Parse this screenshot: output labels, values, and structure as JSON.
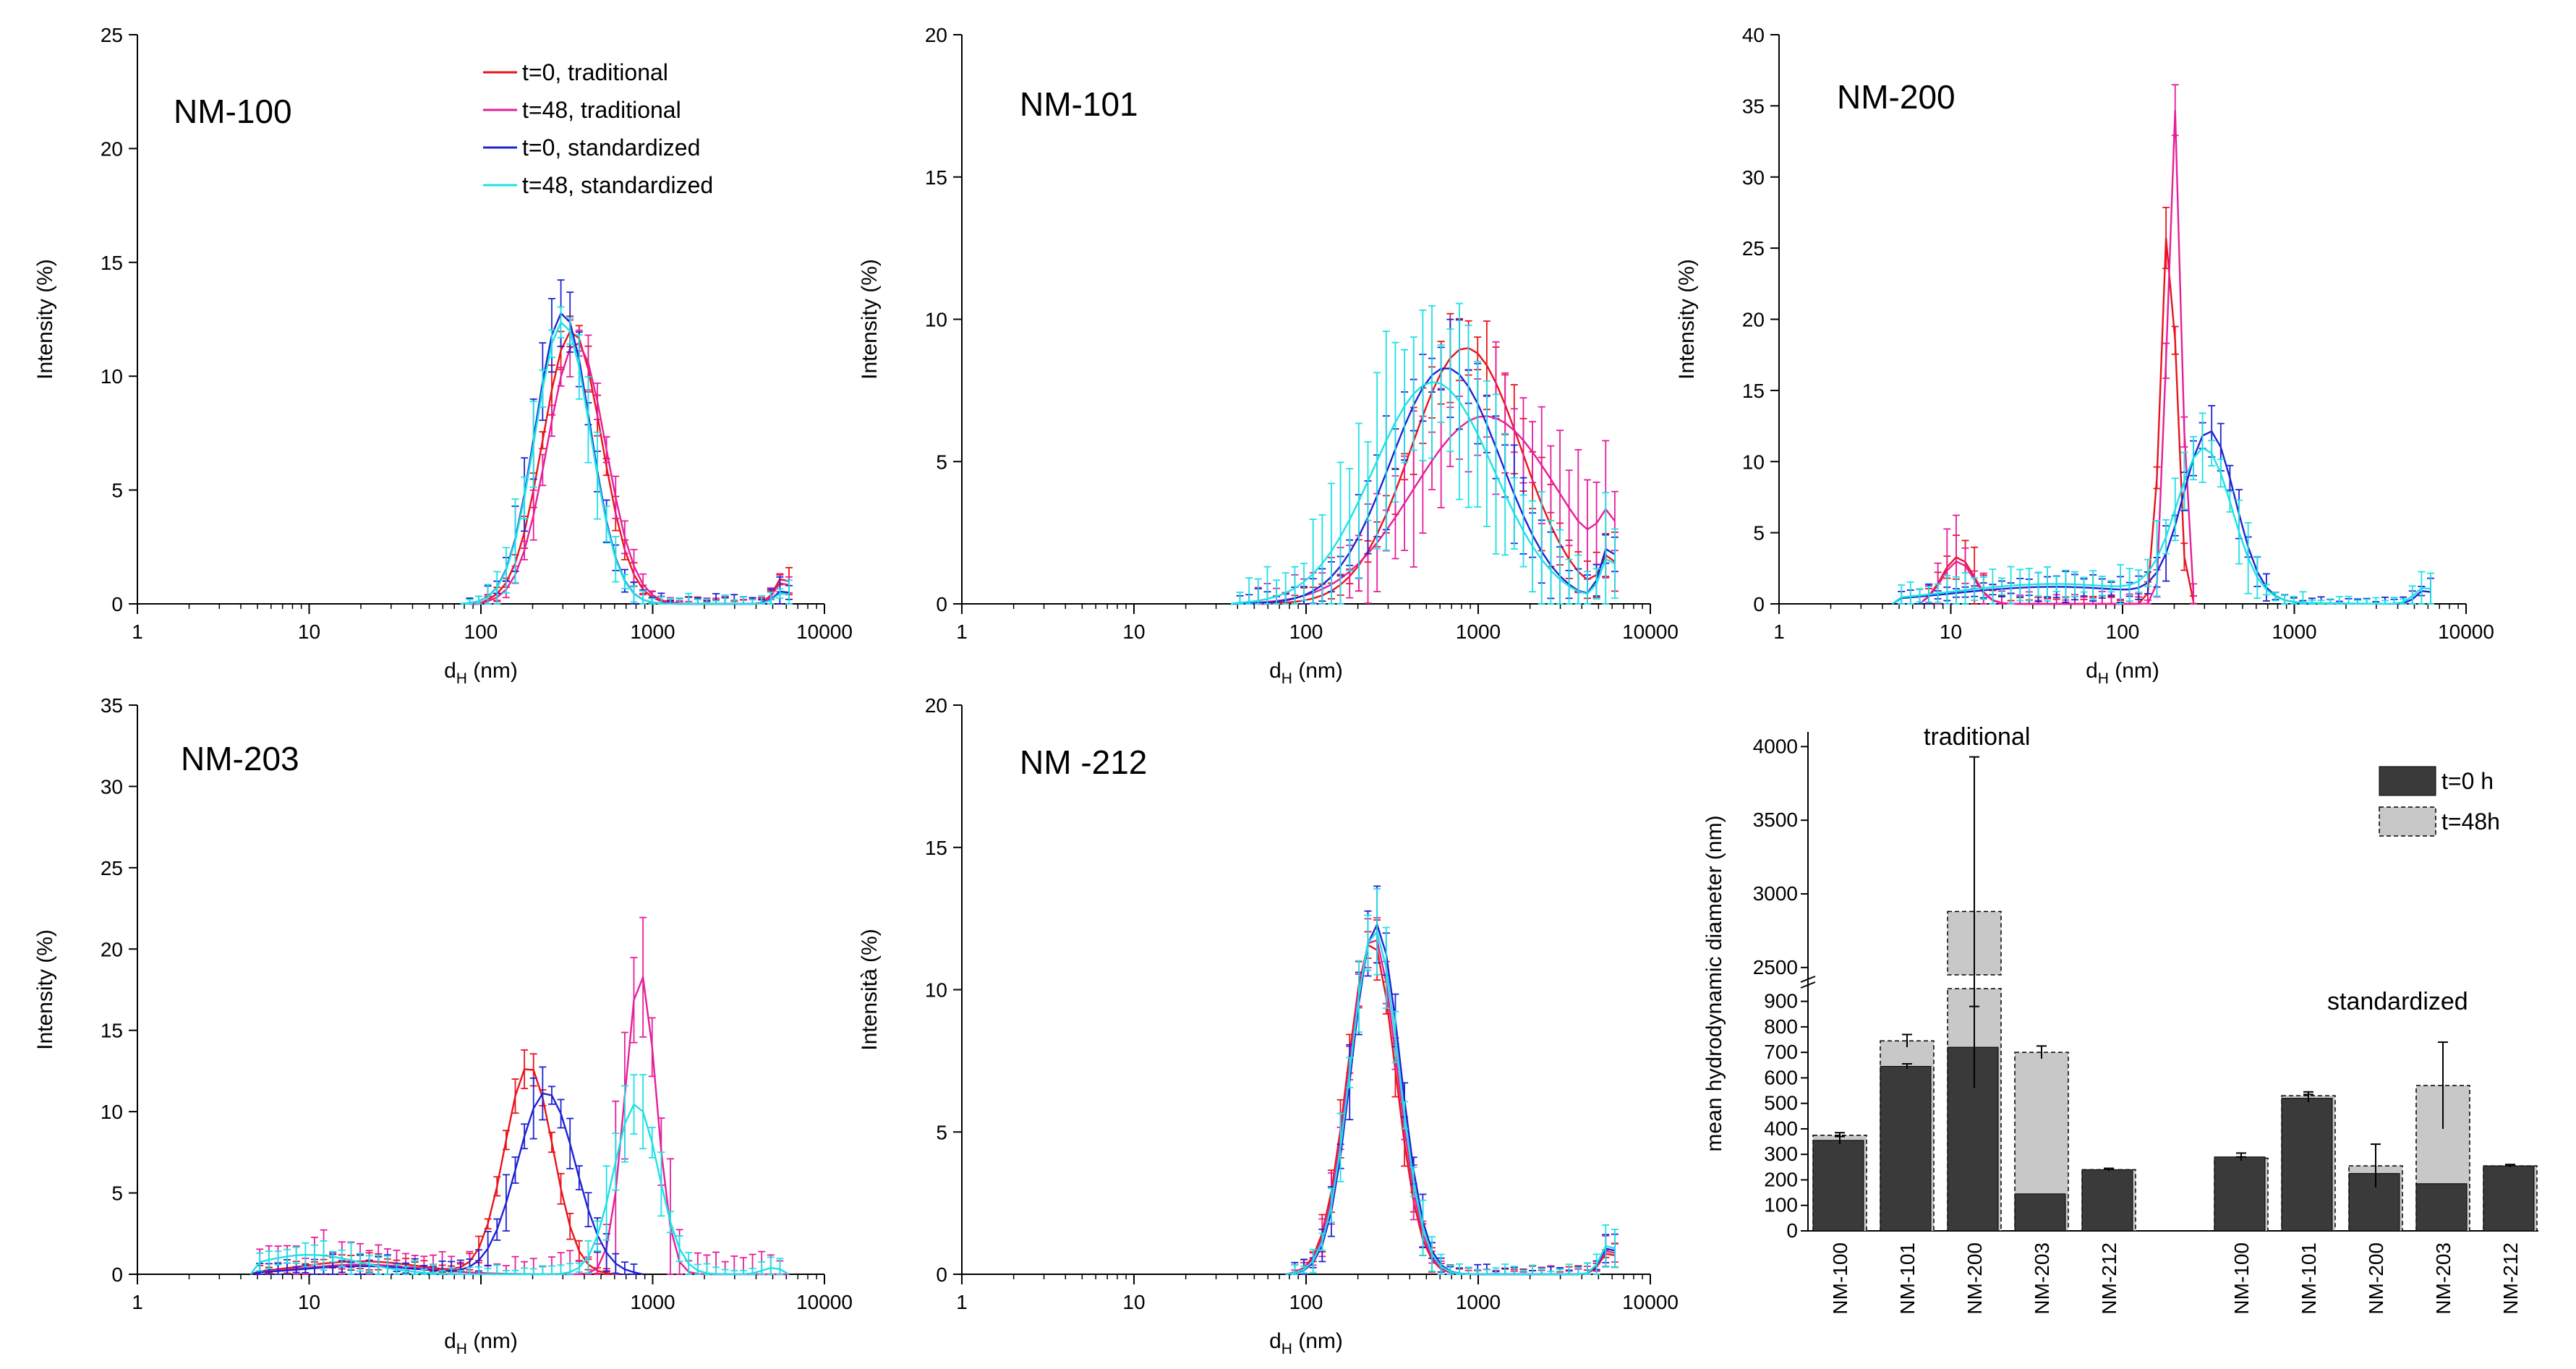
{
  "figure": {
    "series_colors": {
      "t0_traditional": "#e8141c",
      "t48_traditional": "#e61e9b",
      "t0_standardized": "#1e23d2",
      "t48_standardized": "#1ee1e6"
    },
    "bar_colors": {
      "t0": "#3a3a3a",
      "t48": "#c8c8c8"
    }
  },
  "chart_data": [
    {
      "id": "nm100",
      "type": "line",
      "title": "NM-100",
      "xlabel": "d",
      "xlabel_sub": "H",
      "xlabel_unit": " (nm)",
      "ylabel": "Intensity (%)",
      "xscale": "log",
      "xlim": [
        1,
        10000
      ],
      "ylim": [
        0,
        25
      ],
      "yticks": [
        0,
        5,
        10,
        15,
        20,
        25
      ],
      "xtick_labels": [
        "1",
        "10",
        "100",
        "1000",
        "10000"
      ],
      "legend": {
        "position": "top-right",
        "entries": [
          "t=0, traditional",
          "t=48, traditional",
          "t=0, standardized",
          "t=48, standardized"
        ]
      },
      "series": [
        {
          "name": "t=0, traditional",
          "key": "t0_traditional",
          "peaks": [
            [
              340,
              12.0,
              0.17
            ],
            [
              5800,
              1.2,
              0.05
            ]
          ],
          "xrange": [
            100,
            6300
          ],
          "err": 1.0
        },
        {
          "name": "t=48, traditional",
          "key": "t48_traditional",
          "peaks": [
            [
              360,
              11.5,
              0.17
            ],
            [
              5800,
              1.0,
              0.05
            ]
          ],
          "xrange": [
            100,
            6300
          ],
          "err": 1.1
        },
        {
          "name": "t=0, standardized",
          "key": "t0_standardized",
          "peaks": [
            [
              300,
              12.8,
              0.16
            ],
            [
              5800,
              0.6,
              0.05
            ]
          ],
          "xrange": [
            80,
            6300
          ],
          "err": 1.5
        },
        {
          "name": "t=48, standardized",
          "key": "t48_standardized",
          "peaks": [
            [
              300,
              12.4,
              0.16
            ],
            [
              5800,
              0.5,
              0.05
            ]
          ],
          "xrange": [
            80,
            6300
          ],
          "err": 1.8
        }
      ]
    },
    {
      "id": "nm101",
      "type": "line",
      "title": "NM-101",
      "xlabel": "d",
      "xlabel_sub": "H",
      "xlabel_unit": " (nm)",
      "ylabel": "Intensity (%)",
      "xscale": "log",
      "xlim": [
        1,
        10000
      ],
      "ylim": [
        0,
        20
      ],
      "yticks": [
        0,
        5,
        10,
        15,
        20
      ],
      "xtick_labels": [
        "1",
        "10",
        "100",
        "1000",
        "10000"
      ],
      "series": [
        {
          "name": "t=0, traditional",
          "key": "t0_traditional",
          "peaks": [
            [
              850,
              9.0,
              0.32
            ],
            [
              5800,
              1.5,
              0.05
            ]
          ],
          "xrange": [
            60,
            6300
          ],
          "err": 1.4
        },
        {
          "name": "t=48, traditional",
          "key": "t48_traditional",
          "peaks": [
            [
              1100,
              6.6,
              0.42
            ],
            [
              5800,
              1.8,
              0.06
            ]
          ],
          "xrange": [
            50,
            6300
          ],
          "err": 2.3
        },
        {
          "name": "t=0, standardized",
          "key": "t0_standardized",
          "peaks": [
            [
              650,
              8.3,
              0.32
            ],
            [
              5800,
              2.0,
              0.05
            ]
          ],
          "xrange": [
            40,
            6300
          ],
          "err": 1.8
        },
        {
          "name": "t=48, standardized",
          "key": "t48_standardized",
          "peaks": [
            [
              550,
              7.8,
              0.35
            ],
            [
              5800,
              1.6,
              0.05
            ]
          ],
          "xrange": [
            40,
            6300
          ],
          "err": 3.3
        }
      ]
    },
    {
      "id": "nm200",
      "type": "line",
      "title": "NM-200",
      "xlabel": "d",
      "xlabel_sub": "H",
      "xlabel_unit": " (nm)",
      "ylabel": "Intensity (%)",
      "xscale": "log",
      "xlim": [
        1,
        10000
      ],
      "ylim": [
        0,
        40
      ],
      "yticks": [
        0,
        5,
        10,
        15,
        20,
        25,
        30,
        35,
        40
      ],
      "xtick_labels": [
        "1",
        "10",
        "100",
        "1000",
        "10000"
      ],
      "series": [
        {
          "name": "t=0, traditional",
          "key": "t0_traditional",
          "peaks": [
            [
              11,
              3.3,
              0.09
            ],
            [
              185,
              27,
              0.045
            ]
          ],
          "xrange": [
            7,
            260
          ],
          "err": 2.5
        },
        {
          "name": "t=48, traditional",
          "key": "t48_traditional",
          "peaks": [
            [
              11,
              3.0,
              0.09
            ],
            [
              200,
              35,
              0.04
            ]
          ],
          "xrange": [
            7,
            260
          ],
          "err": 3.0
        },
        {
          "name": "t=0, standardized",
          "key": "t0_standardized",
          "peaks": [
            [
              40,
              1.2,
              0.6
            ],
            [
              320,
              11.8,
              0.15
            ],
            [
              5800,
              1.0,
              0.05
            ]
          ],
          "xrange": [
            5,
            6300
          ],
          "err": 1.8
        },
        {
          "name": "t=48, standardized",
          "key": "t48_standardized",
          "peaks": [
            [
              40,
              1.4,
              0.6
            ],
            [
              300,
              10.5,
              0.16
            ],
            [
              5800,
              1.2,
              0.06
            ]
          ],
          "xrange": [
            5,
            6300
          ],
          "err": 2.3
        }
      ]
    },
    {
      "id": "nm203",
      "type": "line",
      "title": "NM-203",
      "xlabel": "d",
      "xlabel_sub": "H",
      "xlabel_unit": " (nm)",
      "ylabel": "Intensity (%)",
      "xscale": "log",
      "xlim": [
        1,
        10000
      ],
      "ylim": [
        0,
        35
      ],
      "yticks": [
        0,
        5,
        10,
        15,
        20,
        25,
        30,
        35
      ],
      "xtick_labels": [
        "1",
        "10",
        "1000",
        "10000"
      ],
      "xtick_values": [
        1,
        10,
        1000,
        10000
      ],
      "series": [
        {
          "name": "t=0, traditional",
          "key": "t0_traditional",
          "peaks": [
            [
              20,
              0.8,
              0.35
            ],
            [
              190,
              12.8,
              0.14
            ]
          ],
          "xrange": [
            5,
            600
          ],
          "err": 1.0
        },
        {
          "name": "t=48, traditional",
          "key": "t48_traditional",
          "peaks": [
            [
              20,
              0.6,
              0.35
            ],
            [
              850,
              18.5,
              0.09
            ]
          ],
          "xrange": [
            5,
            6000
          ],
          "err": 5.0
        },
        {
          "name": "t=0, standardized",
          "key": "t0_standardized",
          "peaks": [
            [
              20,
              0.5,
              0.35
            ],
            [
              240,
              11.2,
              0.17
            ]
          ],
          "xrange": [
            5,
            800
          ],
          "err": 1.8
        },
        {
          "name": "t=48, standardized",
          "key": "t48_standardized",
          "peaks": [
            [
              10,
              1.2,
              0.3
            ],
            [
              800,
              10.5,
              0.13
            ],
            [
              5000,
              0.4,
              0.06
            ]
          ],
          "xrange": [
            5,
            6000
          ],
          "err": 2.0
        }
      ]
    },
    {
      "id": "nm212",
      "type": "line",
      "title": "NM -212",
      "xlabel": "d",
      "xlabel_sub": "H",
      "xlabel_unit": " (nm)",
      "ylabel": "Intensità (%)",
      "xscale": "log",
      "xlim": [
        1,
        10000
      ],
      "ylim": [
        0,
        20
      ],
      "yticks": [
        0,
        5,
        10,
        15,
        20
      ],
      "xtick_labels": [
        "1",
        "10",
        "100",
        "1000",
        "10000"
      ],
      "series": [
        {
          "name": "t=0, traditional",
          "key": "t0_traditional",
          "peaks": [
            [
              240,
              11.7,
              0.14
            ],
            [
              5800,
              0.8,
              0.05
            ]
          ],
          "xrange": [
            80,
            6300
          ],
          "err": 1.0
        },
        {
          "name": "t=48, traditional",
          "key": "t48_traditional",
          "peaks": [
            [
              245,
              11.9,
              0.14
            ],
            [
              5800,
              0.9,
              0.05
            ]
          ],
          "xrange": [
            80,
            6300
          ],
          "err": 1.0
        },
        {
          "name": "t=0, standardized",
          "key": "t0_standardized",
          "peaks": [
            [
              255,
              12.3,
              0.14
            ],
            [
              5800,
              1.0,
              0.05
            ]
          ],
          "xrange": [
            80,
            6300
          ],
          "err": 1.2
        },
        {
          "name": "t=48, standardized",
          "key": "t48_standardized",
          "peaks": [
            [
              250,
              12.1,
              0.14
            ],
            [
              5800,
              1.1,
              0.05
            ]
          ],
          "xrange": [
            80,
            6300
          ],
          "err": 1.3
        }
      ]
    },
    {
      "id": "bars",
      "type": "bar",
      "ylabel": "mean hydrodynamic diameter (nm)",
      "y_broken_axis": true,
      "y_lower_range": [
        0,
        950
      ],
      "y_upper_range": [
        2450,
        4100
      ],
      "yticks": [
        "0",
        "100",
        "200",
        "300",
        "400",
        "500",
        "600",
        "700",
        "800",
        "900",
        "2500",
        "3000",
        "3500",
        "4000"
      ],
      "legend": {
        "position": "top-right",
        "entries": [
          "t=0 h",
          "t=48h"
        ]
      },
      "groups": [
        {
          "name": "traditional",
          "categories": [
            "NM-100",
            "NM-101",
            "NM-200",
            "NM-203",
            "NM-212"
          ],
          "t0": [
            355,
            645,
            720,
            145,
            240
          ],
          "t0_err": [
            15,
            10,
            160,
            0,
            5
          ],
          "t48": [
            375,
            745,
            2880,
            700,
            240
          ],
          "t48_err": [
            10,
            25,
            1050,
            25,
            5
          ]
        },
        {
          "name": "standardized",
          "categories": [
            "NM-100",
            "NM-101",
            "NM-200",
            "NM-203",
            "NM-212"
          ],
          "t0": [
            290,
            520,
            225,
            185,
            255
          ],
          "t0_err": [
            15,
            15,
            0,
            0,
            5
          ],
          "t48": [
            285,
            530,
            255,
            570,
            255
          ],
          "t48_err": [
            5,
            15,
            85,
            170,
            5
          ]
        }
      ]
    }
  ]
}
